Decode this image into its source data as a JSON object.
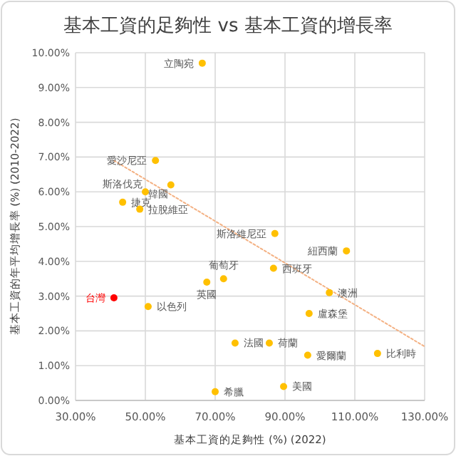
{
  "chart_data": {
    "type": "scatter",
    "title": "基本工資的足夠性 vs 基本工資的增長率",
    "xlabel": "基本工資的足夠性 (%) (2022)",
    "ylabel": "基本工資的年平均增長率 (%) (2010-2022)",
    "xlim": [
      30,
      130
    ],
    "xticks": [
      {
        "value": 30,
        "label": "30.00%"
      },
      {
        "value": 50,
        "label": "50.00%"
      },
      {
        "value": 70,
        "label": "70.00%"
      },
      {
        "value": 90,
        "label": "90.00%"
      },
      {
        "value": 110,
        "label": "110.00%"
      },
      {
        "value": 130,
        "label": "130.00%"
      }
    ],
    "ylim": [
      0,
      10
    ],
    "yticks": [
      {
        "value": 0,
        "label": "0.00%"
      },
      {
        "value": 1,
        "label": "1.00%"
      },
      {
        "value": 2,
        "label": "2.00%"
      },
      {
        "value": 3,
        "label": "3.00%"
      },
      {
        "value": 4,
        "label": "4.00%"
      },
      {
        "value": 5,
        "label": "5.00%"
      },
      {
        "value": 6,
        "label": "6.00%"
      },
      {
        "value": 7,
        "label": "7.00%"
      },
      {
        "value": 8,
        "label": "8.00%"
      },
      {
        "value": 9,
        "label": "9.00%"
      },
      {
        "value": 10,
        "label": "10.00%"
      }
    ],
    "grid": true,
    "marker": "circle",
    "series": [
      {
        "name": "立陶宛",
        "color": "#ffc000",
        "x": [
          66.3
        ],
        "values": [
          9.7
        ]
      },
      {
        "name": "愛沙尼亞",
        "color": "#ffc000",
        "x": [
          52.9
        ],
        "values": [
          6.9
        ]
      },
      {
        "name": "斯洛伐克",
        "color": "#ffc000",
        "x": [
          50.0
        ],
        "values": [
          6.0
        ]
      },
      {
        "name": "韓國",
        "color": "#ffc000",
        "x": [
          57.3
        ],
        "values": [
          6.2
        ]
      },
      {
        "name": "捷克",
        "color": "#ffc000",
        "x": [
          43.5
        ],
        "values": [
          5.7
        ]
      },
      {
        "name": "拉脫維亞",
        "color": "#ffc000",
        "x": [
          48.4
        ],
        "values": [
          5.5
        ]
      },
      {
        "name": "斯洛維尼亞",
        "color": "#ffc000",
        "x": [
          87.1
        ],
        "values": [
          4.8
        ]
      },
      {
        "name": "紐西蘭",
        "color": "#ffc000",
        "x": [
          107.6
        ],
        "values": [
          4.3
        ]
      },
      {
        "name": "英國",
        "color": "#ffc000",
        "x": [
          67.6
        ],
        "values": [
          3.4
        ]
      },
      {
        "name": "葡萄牙",
        "color": "#ffc000",
        "x": [
          72.4
        ],
        "values": [
          3.5
        ]
      },
      {
        "name": "西班牙",
        "color": "#ffc000",
        "x": [
          86.7
        ],
        "values": [
          3.8
        ]
      },
      {
        "name": "澳洲",
        "color": "#ffc000",
        "x": [
          102.7
        ],
        "values": [
          3.1
        ]
      },
      {
        "name": "盧森堡",
        "color": "#ffc000",
        "x": [
          96.9
        ],
        "values": [
          2.5
        ]
      },
      {
        "name": "台灣",
        "color": "#ff0000",
        "x": [
          41.0
        ],
        "values": [
          2.95
        ]
      },
      {
        "name": "以色列",
        "color": "#ffc000",
        "x": [
          50.8
        ],
        "values": [
          2.7
        ]
      },
      {
        "name": "法國",
        "color": "#ffc000",
        "x": [
          75.7
        ],
        "values": [
          1.65
        ]
      },
      {
        "name": "荷蘭",
        "color": "#ffc000",
        "x": [
          85.5
        ],
        "values": [
          1.65
        ]
      },
      {
        "name": "愛爾蘭",
        "color": "#ffc000",
        "x": [
          96.5
        ],
        "values": [
          1.3
        ]
      },
      {
        "name": "比利時",
        "color": "#ffc000",
        "x": [
          116.5
        ],
        "values": [
          1.35
        ]
      },
      {
        "name": "美國",
        "color": "#ffc000",
        "x": [
          89.6
        ],
        "values": [
          0.4
        ]
      },
      {
        "name": "希臘",
        "color": "#ffc000",
        "x": [
          70.0
        ],
        "values": [
          0.25
        ]
      },
      {
        "type": "line",
        "color": "#f4b183",
        "line_style": "dotted",
        "marker": "none",
        "x": [
          41,
          130
        ],
        "values": [
          6.9,
          1.55
        ]
      }
    ]
  }
}
